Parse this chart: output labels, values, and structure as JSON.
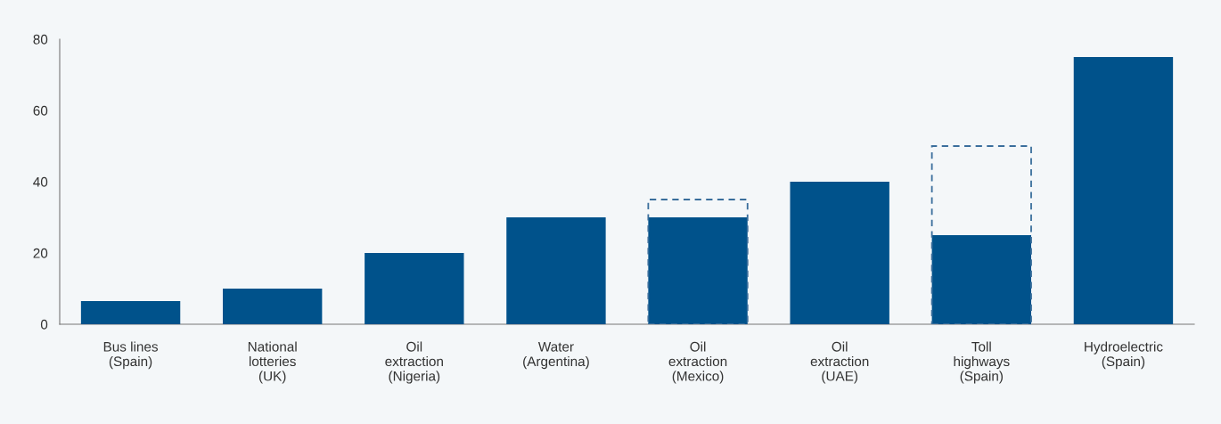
{
  "chart_data": {
    "type": "bar",
    "categories": [
      "Bus lines\n(Spain)",
      "National\nlotteries\n(UK)",
      "Oil\nextraction\n(Nigeria)",
      "Water\n(Argentina)",
      "Oil\nextraction\n(Mexico)",
      "Oil\nextraction\n(UAE)",
      "Toll\nhighways\n(Spain)",
      "Hydroelectric\n(Spain)"
    ],
    "series": [
      {
        "color": "#3a6e9c",
        "line_style": "dashed",
        "values": [
          null,
          null,
          null,
          null,
          35,
          null,
          50,
          null
        ]
      },
      {
        "color": "#00528b",
        "values": [
          6.5,
          10,
          20,
          30,
          30,
          40,
          25,
          75
        ]
      }
    ],
    "ylim": [
      0,
      80
    ],
    "yticks": [
      0,
      20,
      40,
      60,
      80
    ],
    "grid": false,
    "legend": false
  }
}
